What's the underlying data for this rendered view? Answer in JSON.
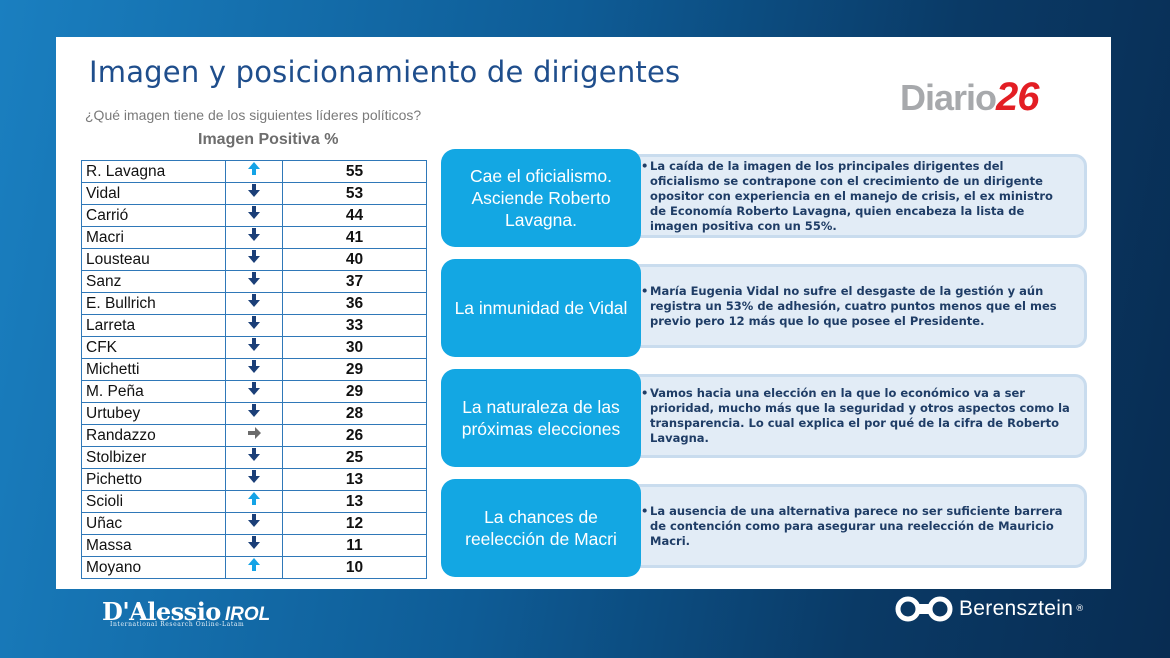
{
  "title": "Imagen y posicionamiento de dirigentes",
  "subtitle": "¿Qué imagen tiene de los siguientes líderes políticos?",
  "column_heading": "Imagen Positiva %",
  "logo": {
    "word": "Diario",
    "number": "26",
    "accent_color": "#e31e24"
  },
  "ranking": [
    {
      "name": "R. Lavagna",
      "trend": "up",
      "value": "55"
    },
    {
      "name": "Vidal",
      "trend": "down",
      "value": "53"
    },
    {
      "name": "Carrió",
      "trend": "down",
      "value": "44"
    },
    {
      "name": "Macri",
      "trend": "down",
      "value": "41"
    },
    {
      "name": "Lousteau",
      "trend": "down",
      "value": "40"
    },
    {
      "name": "Sanz",
      "trend": "down",
      "value": "37"
    },
    {
      "name": "E. Bullrich",
      "trend": "down",
      "value": "36"
    },
    {
      "name": "Larreta",
      "trend": "down",
      "value": "33"
    },
    {
      "name": "CFK",
      "trend": "down",
      "value": "30"
    },
    {
      "name": "Michetti",
      "trend": "down",
      "value": "29"
    },
    {
      "name": "M. Peña",
      "trend": "down",
      "value": "29"
    },
    {
      "name": "Urtubey",
      "trend": "down",
      "value": "28"
    },
    {
      "name": "Randazzo",
      "trend": "right",
      "value": "26"
    },
    {
      "name": "Stolbizer",
      "trend": "down",
      "value": "25"
    },
    {
      "name": "Pichetto",
      "trend": "down",
      "value": "13"
    },
    {
      "name": "Scioli",
      "trend": "up",
      "value": "13"
    },
    {
      "name": "Uñac",
      "trend": "down",
      "value": "12"
    },
    {
      "name": "Massa",
      "trend": "down",
      "value": "11"
    },
    {
      "name": "Moyano",
      "trend": "up",
      "value": "10"
    }
  ],
  "panels": [
    {
      "heading": "Cae el oficialismo. Asciende Roberto Lavagna.",
      "text": "La caída de la imagen de los principales dirigentes del oficialismo se contrapone con el crecimiento de un dirigente opositor con experiencia en el manejo de crisis, el ex ministro de Economía Roberto Lavagna, quien encabeza la lista de imagen positiva con un 55%."
    },
    {
      "heading": "La inmunidad de Vidal",
      "text": "María Eugenia Vidal no sufre el desgaste de la gestión y aún registra un 53% de adhesión, cuatro puntos menos que el mes previo pero 12 más que lo que posee el Presidente."
    },
    {
      "heading": "La naturaleza de las próximas  elecciones",
      "text": "Vamos hacia una elección en la que lo económico va a ser prioridad, mucho más que la seguridad y otros aspectos como la transparencia. Lo cual explica el por qué de la cifra de Roberto Lavagna."
    },
    {
      "heading": "La chances de reelección de Macri",
      "text": "La ausencia de una alternativa parece no ser suficiente barrera de contención como para asegurar una reelección de Mauricio Macri."
    }
  ],
  "footer": {
    "left_brand": "D'Alessio",
    "left_brand_suffix": "IROL",
    "left_tagline": "International Research Online-Latam",
    "right_brand": "Berensztein",
    "right_reg": "®"
  },
  "colors": {
    "pill": "#13a7e3",
    "note_bg": "#e2ecf6",
    "title": "#1f4e8c",
    "arrow_down": "#1b3f78",
    "arrow_up": "#14a3e6"
  },
  "icons": {
    "up": "arrow-up-icon",
    "down": "arrow-down-icon",
    "right": "arrow-right-icon"
  }
}
